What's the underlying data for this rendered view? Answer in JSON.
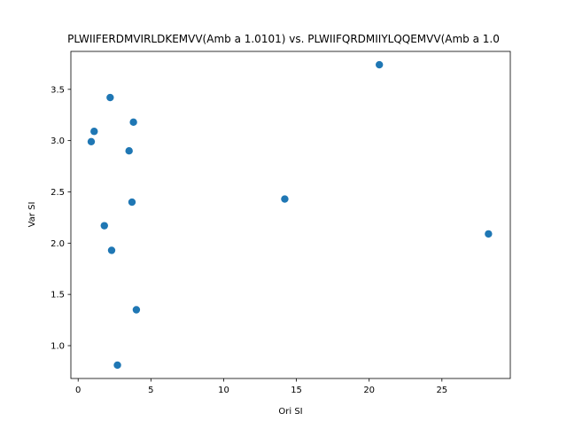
{
  "chart_data": {
    "type": "scatter",
    "title": "PLWIIFERDMVIRLDKEMVV(Amb a 1.0101) vs. PLWIIFQRDMIIYLQQEMVV(Amb a 1.0",
    "xlabel": "Ori SI",
    "ylabel": "Var SI",
    "xlim": [
      -0.5,
      29.7
    ],
    "ylim": [
      0.68,
      3.87
    ],
    "xticks": [
      0,
      5,
      10,
      15,
      20,
      25
    ],
    "yticks": [
      1.0,
      1.5,
      2.0,
      2.5,
      3.0,
      3.5
    ],
    "xtick_labels": [
      "0",
      "5",
      "10",
      "15",
      "20",
      "25"
    ],
    "ytick_labels": [
      "1.0",
      "1.5",
      "2.0",
      "2.5",
      "3.0",
      "3.5"
    ],
    "grid": false,
    "series": [
      {
        "color": "#1f77b4",
        "points": [
          {
            "x": 2.2,
            "y": 3.42
          },
          {
            "x": 3.8,
            "y": 3.18
          },
          {
            "x": 1.1,
            "y": 3.09
          },
          {
            "x": 0.9,
            "y": 2.99
          },
          {
            "x": 3.5,
            "y": 2.9
          },
          {
            "x": 3.7,
            "y": 2.4
          },
          {
            "x": 1.8,
            "y": 2.17
          },
          {
            "x": 2.3,
            "y": 1.93
          },
          {
            "x": 4.0,
            "y": 1.35
          },
          {
            "x": 2.7,
            "y": 0.81
          },
          {
            "x": 14.2,
            "y": 2.43
          },
          {
            "x": 20.7,
            "y": 3.74
          },
          {
            "x": 28.2,
            "y": 2.09
          }
        ]
      }
    ]
  }
}
